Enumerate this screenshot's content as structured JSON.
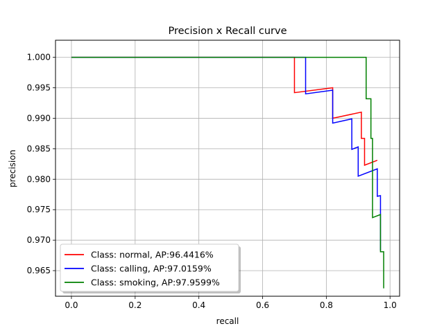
{
  "chart_data": {
    "type": "line",
    "title": "Precision x Recall curve",
    "xlabel": "recall",
    "ylabel": "precision",
    "xlim": [
      -0.05,
      1.03
    ],
    "ylim": [
      0.9608,
      1.0028
    ],
    "grid": true,
    "x_ticks": [
      0.0,
      0.2,
      0.4,
      0.6,
      0.8,
      1.0
    ],
    "x_tick_labels": [
      "0.0",
      "0.2",
      "0.4",
      "0.6",
      "0.8",
      "1.0"
    ],
    "y_ticks": [
      0.965,
      0.97,
      0.975,
      0.98,
      0.985,
      0.99,
      0.995,
      1.0
    ],
    "y_tick_labels": [
      "0.965",
      "0.970",
      "0.975",
      "0.980",
      "0.985",
      "0.990",
      "0.995",
      "1.000"
    ],
    "legend_location": "lower-left",
    "series": [
      {
        "name": "Class: normal, AP:96.4416%",
        "color": "#ff0000",
        "points": [
          [
            0.0,
            1.0
          ],
          [
            0.7,
            1.0
          ],
          [
            0.7,
            0.9942
          ],
          [
            0.82,
            0.995
          ],
          [
            0.82,
            0.99
          ],
          [
            0.91,
            0.991
          ],
          [
            0.91,
            0.9867
          ],
          [
            0.92,
            0.9867
          ],
          [
            0.92,
            0.9823
          ],
          [
            0.96,
            0.9831
          ]
        ]
      },
      {
        "name": "Class: calling, AP:97.0159%",
        "color": "#0000ff",
        "points": [
          [
            0.0,
            1.0
          ],
          [
            0.735,
            1.0
          ],
          [
            0.735,
            0.994
          ],
          [
            0.82,
            0.9946
          ],
          [
            0.82,
            0.9892
          ],
          [
            0.88,
            0.9899
          ],
          [
            0.88,
            0.9849
          ],
          [
            0.9,
            0.9853
          ],
          [
            0.9,
            0.9805
          ],
          [
            0.96,
            0.9817
          ],
          [
            0.96,
            0.9772
          ],
          [
            0.97,
            0.9773
          ],
          [
            0.97,
            0.9683
          ],
          [
            0.97,
            0.9683
          ]
        ]
      },
      {
        "name": "Class: smoking, AP:97.9599%",
        "color": "#008000",
        "points": [
          [
            0.0,
            1.0
          ],
          [
            0.925,
            1.0
          ],
          [
            0.925,
            0.9932
          ],
          [
            0.94,
            0.9932
          ],
          [
            0.94,
            0.9867
          ],
          [
            0.945,
            0.9867
          ],
          [
            0.945,
            0.9737
          ],
          [
            0.97,
            0.9742
          ],
          [
            0.97,
            0.9681
          ],
          [
            0.98,
            0.9681
          ],
          [
            0.98,
            0.9621
          ]
        ]
      }
    ]
  }
}
